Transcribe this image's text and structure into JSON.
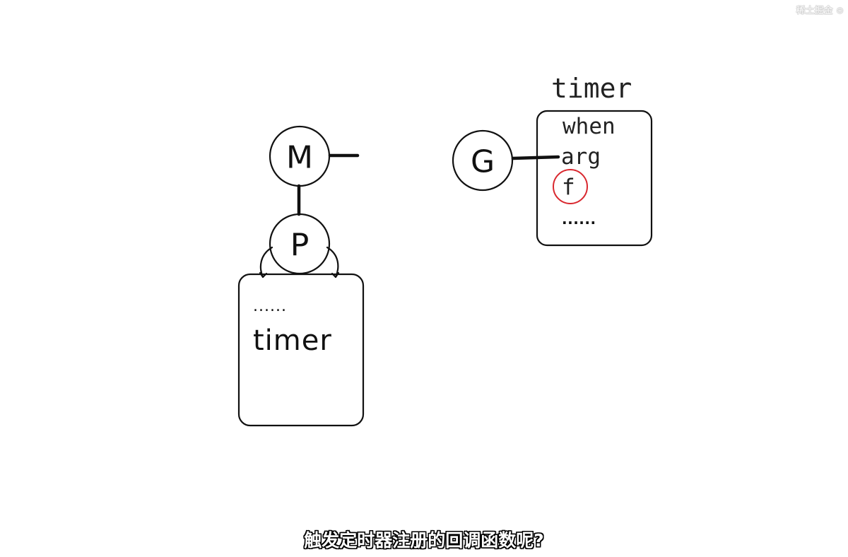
{
  "nodes": {
    "m": {
      "label": "M"
    },
    "p": {
      "label": "P"
    },
    "g": {
      "label": "G"
    }
  },
  "p_queue": {
    "ellipsis": "......",
    "item": "timer"
  },
  "timer_struct": {
    "title": "timer",
    "fields": [
      "when",
      "arg",
      "f",
      "......"
    ],
    "highlighted_field": "f",
    "highlight_color": "#d9282f"
  },
  "subtitle": "触发定时器注册的回调函数呢?",
  "watermark": "稀土掘金 ⊙"
}
